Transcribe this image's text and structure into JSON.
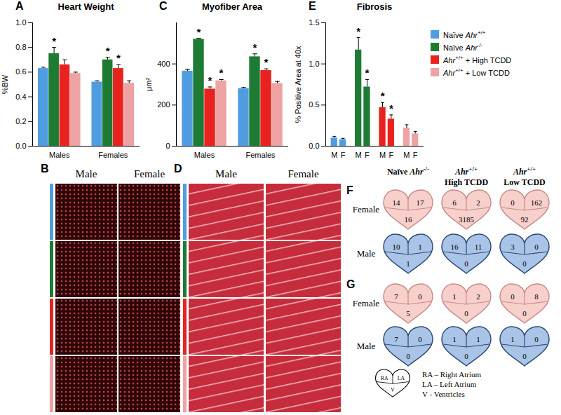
{
  "chart_data": [
    {
      "panel": "A",
      "type": "bar",
      "title": "Heart Weight",
      "y_label": "%BW",
      "categories": [
        "Males",
        "Females"
      ],
      "series": [
        {
          "name": "Naïve Ahr+/+",
          "color": "#4f9de0",
          "values": [
            0.63,
            0.52
          ],
          "errors": [
            0.01,
            0.01
          ],
          "significance": [
            null,
            null
          ]
        },
        {
          "name": "Naïve Ahr-/-",
          "color": "#1e7b34",
          "values": [
            0.75,
            0.7
          ],
          "errors": [
            0.05,
            0.02
          ],
          "significance": [
            "*",
            "*"
          ]
        },
        {
          "name": "Ahr+/+ + High TCDD",
          "color": "#e8231f",
          "values": [
            0.66,
            0.63
          ],
          "errors": [
            0.04,
            0.03
          ],
          "significance": [
            null,
            "*"
          ]
        },
        {
          "name": "Ahr+/+ + Low TCDD",
          "color": "#eda3a3",
          "values": [
            0.59,
            0.51
          ],
          "errors": [
            0.01,
            0.02
          ],
          "significance": [
            null,
            null
          ]
        }
      ],
      "ylim": [
        0,
        1
      ],
      "yticks": [
        {
          "value": 0,
          "label": "0.0"
        },
        0.2,
        0.4,
        0.6,
        0.8,
        {
          "value": 1,
          "label": "1.0"
        }
      ]
    },
    {
      "panel": "C",
      "type": "bar",
      "title": "Myofiber Area",
      "y_label": "μm²",
      "categories": [
        "Males",
        "Females"
      ],
      "series": [
        {
          "name": "Naïve Ahr+/+",
          "color": "#4f9de0",
          "values": [
            365,
            280
          ],
          "errors": [
            8,
            6
          ],
          "significance": [
            null,
            null
          ]
        },
        {
          "name": "Naïve Ahr-/-",
          "color": "#1e7b34",
          "values": [
            520,
            435
          ],
          "errors": [
            5,
            14
          ],
          "significance": [
            "*",
            "*"
          ]
        },
        {
          "name": "Ahr+/+ + High TCDD",
          "color": "#e8231f",
          "values": [
            278,
            368
          ],
          "errors": [
            10,
            8
          ],
          "significance": [
            "*",
            "*"
          ]
        },
        {
          "name": "Ahr+/+ + Low TCDD",
          "color": "#eda3a3",
          "values": [
            318,
            305
          ],
          "errors": [
            6,
            10
          ],
          "significance": [
            "*",
            null
          ]
        }
      ],
      "ylim": [
        0,
        600
      ],
      "yticks": [
        0,
        200,
        400
      ]
    },
    {
      "panel": "E",
      "type": "bar",
      "title": "Fibrosis",
      "y_label": "% Positive Area at 40x",
      "categories": [
        "M",
        "F"
      ],
      "legend": "right",
      "series": [
        {
          "name": "Naïve Ahr+/+",
          "color": "#4f9de0",
          "values": [
            0.1,
            0.08
          ],
          "errors": [
            0.02,
            0.015
          ],
          "significance": [
            null,
            null
          ]
        },
        {
          "name": "Naïve Ahr-/-",
          "color": "#1e7b34",
          "values": [
            1.17,
            0.72
          ],
          "errors": [
            0.15,
            0.09
          ],
          "significance": [
            "*",
            "*"
          ]
        },
        {
          "name": "Ahr+/+ + High TCDD",
          "color": "#e8231f",
          "values": [
            0.47,
            0.33
          ],
          "errors": [
            0.06,
            0.05
          ],
          "significance": [
            "*",
            "*"
          ]
        },
        {
          "name": "Ahr+/+ + Low TCDD",
          "color": "#eda3a3",
          "values": [
            0.22,
            0.15
          ],
          "errors": [
            0.04,
            0.03
          ],
          "significance": [
            null,
            null
          ]
        }
      ],
      "ylim": [
        0,
        1.5
      ],
      "yticks": [
        {
          "value": 0,
          "label": "0.0"
        },
        0.5,
        {
          "value": 1,
          "label": "1.0"
        },
        1.5
      ]
    }
  ],
  "micrographs": [
    {
      "panel": "B",
      "columns": [
        "Male",
        "Female"
      ]
    },
    {
      "panel": "D",
      "columns": [
        "Male",
        "Female"
      ]
    }
  ],
  "heart_counts": {
    "columns": [
      [
        "Naïve Ahr-/-"
      ],
      [
        "Ahr+/+",
        "High TCDD"
      ],
      [
        "Ahr+/+",
        "Low TCDD"
      ]
    ],
    "regions": [
      "RA",
      "LA",
      "V"
    ],
    "panels": [
      {
        "panel": "F",
        "rows": [
          {
            "label": "Female",
            "hearts": [
              [
                14,
                17,
                16
              ],
              [
                6,
                2,
                3185
              ],
              [
                0,
                162,
                92
              ]
            ]
          },
          {
            "label": "Male",
            "hearts": [
              [
                10,
                1,
                1
              ],
              [
                16,
                11,
                0
              ],
              [
                3,
                0,
                0
              ]
            ]
          }
        ]
      },
      {
        "panel": "G",
        "rows": [
          {
            "label": "Female",
            "hearts": [
              [
                7,
                0,
                5
              ],
              [
                1,
                2,
                0
              ],
              [
                0,
                8,
                0
              ]
            ]
          },
          {
            "label": "Male",
            "hearts": [
              [
                7,
                0,
                0
              ],
              [
                1,
                1,
                0
              ],
              [
                1,
                0,
                0
              ]
            ]
          }
        ]
      }
    ],
    "key": [
      "RA – Right Atrium",
      "LA – Left Atrium",
      "V - Ventricles"
    ]
  }
}
